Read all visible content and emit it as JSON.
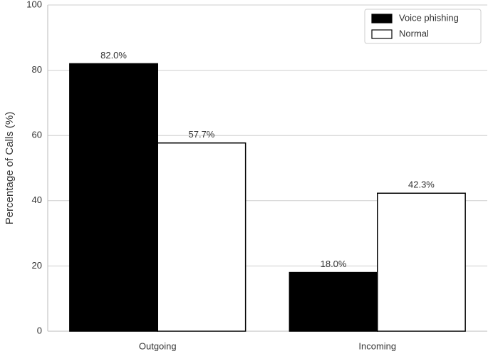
{
  "chart_data": {
    "type": "bar",
    "y_label": "Percentage of Calls (%)",
    "categories": [
      "Outgoing",
      "Incoming"
    ],
    "series": [
      {
        "name": "Voice phishing",
        "color": "#000000",
        "values": [
          82.0,
          18.0
        ],
        "value_labels": [
          "82.0%",
          "18.0%"
        ]
      },
      {
        "name": "Normal",
        "color": "#ffffff",
        "values": [
          57.7,
          42.3
        ],
        "value_labels": [
          "57.7%",
          "42.3%"
        ]
      }
    ],
    "ylim": [
      0,
      100
    ],
    "yticks": [
      0,
      20,
      40,
      60,
      80,
      100
    ],
    "grid": true,
    "legend": "upper right"
  }
}
